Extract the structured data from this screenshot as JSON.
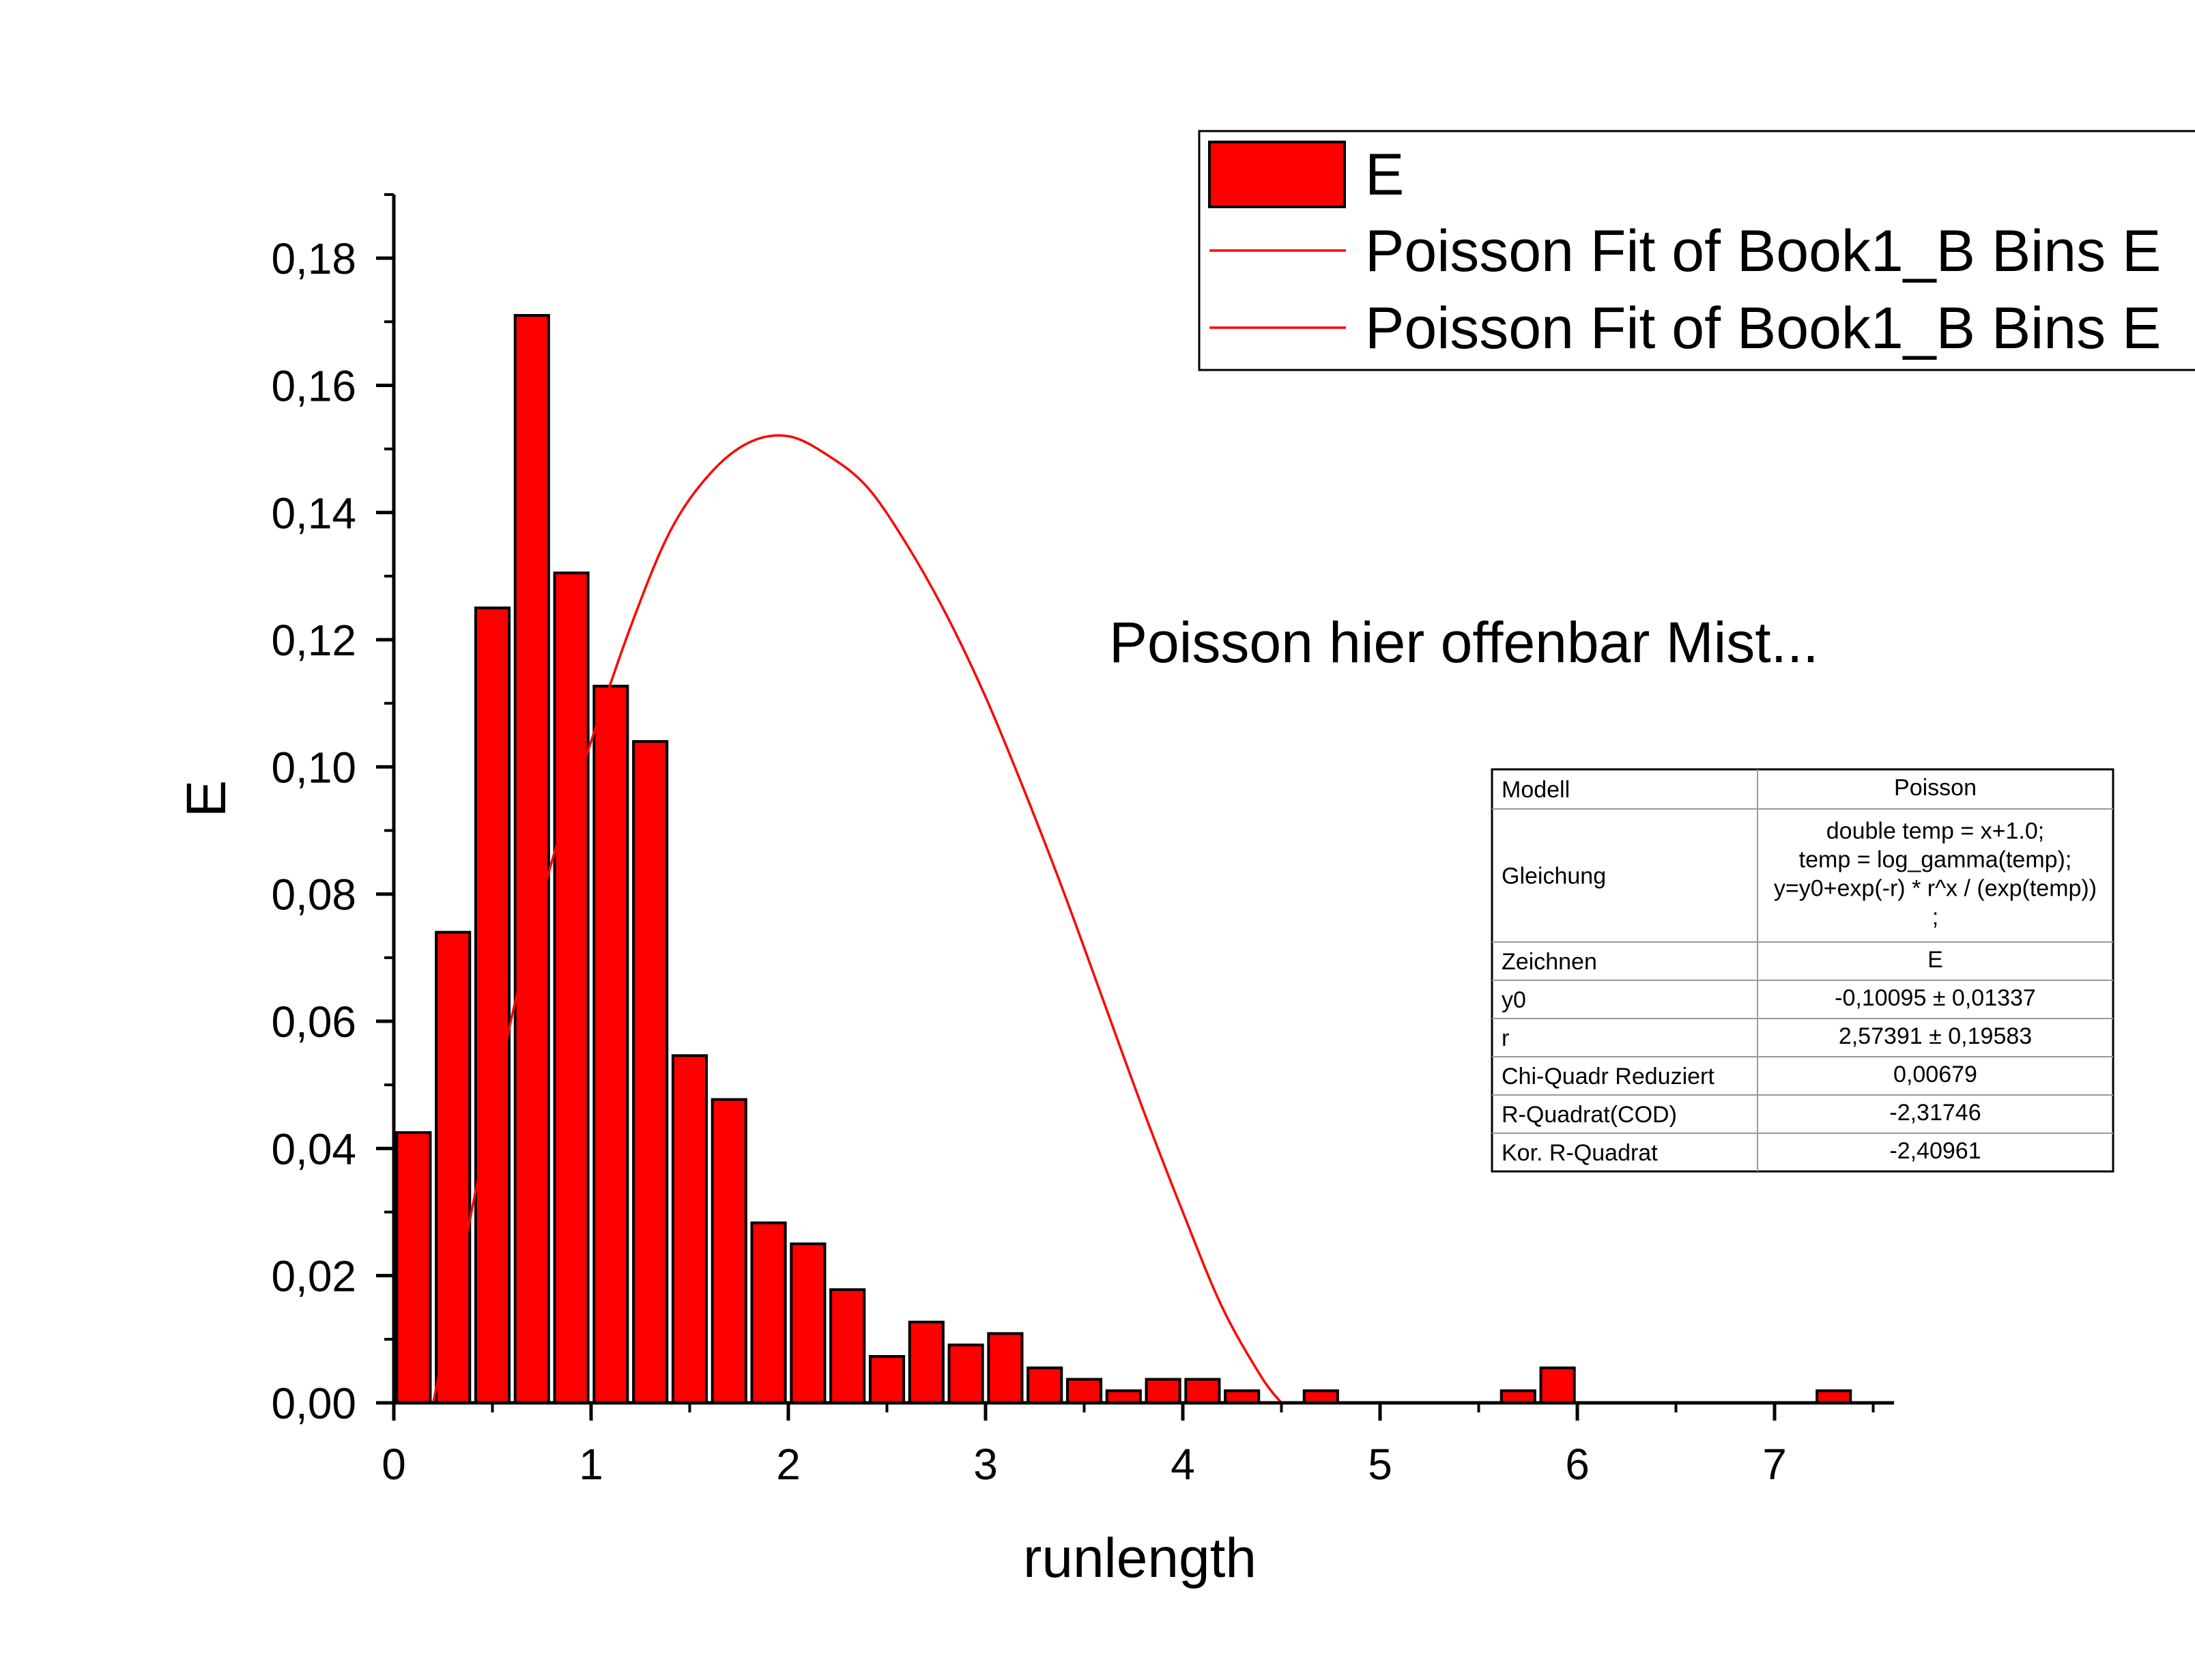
{
  "chart_data": {
    "type": "bar",
    "xlabel": "runlength",
    "ylabel": "E",
    "xlim": [
      0,
      7.6
    ],
    "ylim": [
      0,
      0.19
    ],
    "x_ticks": [
      "0",
      "1",
      "2",
      "3",
      "4",
      "5",
      "6",
      "7"
    ],
    "y_ticks": [
      "0,00",
      "0,02",
      "0,04",
      "0,06",
      "0,08",
      "0,10",
      "0,12",
      "0,14",
      "0,16",
      "0,18"
    ],
    "bar_width": 0.17,
    "bars": {
      "name": "E",
      "color": "#ff0000",
      "x": [
        0.1,
        0.3,
        0.5,
        0.7,
        0.9,
        1.1,
        1.3,
        1.5,
        1.7,
        1.9,
        2.1,
        2.3,
        2.5,
        2.7,
        2.9,
        3.1,
        3.3,
        3.5,
        3.7,
        3.9,
        4.1,
        4.3,
        4.7,
        5.7,
        5.9,
        7.3
      ],
      "values": [
        0.0425,
        0.074,
        0.125,
        0.171,
        0.1305,
        0.1127,
        0.104,
        0.0546,
        0.0477,
        0.0283,
        0.025,
        0.0178,
        0.0073,
        0.0127,
        0.0091,
        0.0109,
        0.0055,
        0.0037,
        0.0019,
        0.0037,
        0.0037,
        0.0019,
        0.0019,
        0.0019,
        0.0055,
        0.0019
      ]
    },
    "fit_curve": {
      "name": "Poisson Fit of Book1_B Bins E",
      "color": "#ff0000",
      "x": [
        0.2,
        0.4,
        0.6,
        0.8,
        1.0,
        1.2,
        1.4,
        1.6,
        1.8,
        2.0,
        2.2,
        2.4,
        2.6,
        2.8,
        3.0,
        3.2,
        3.4,
        3.6,
        3.8,
        4.0,
        4.2,
        4.4,
        4.5
      ],
      "y": [
        0.0,
        0.031,
        0.061,
        0.085,
        0.104,
        0.122,
        0.137,
        0.146,
        0.151,
        0.152,
        0.149,
        0.144,
        0.135,
        0.124,
        0.111,
        0.096,
        0.08,
        0.063,
        0.046,
        0.03,
        0.015,
        0.004,
        0.0
      ]
    },
    "legend": {
      "position": "top-right",
      "entries": [
        {
          "label": "E",
          "kind": "bar"
        },
        {
          "label": "Poisson Fit of Book1_B Bins E",
          "kind": "line"
        },
        {
          "label": "Poisson Fit of Book1_B Bins E",
          "kind": "line"
        }
      ]
    },
    "annotation": "Poisson hier offenbar Mist...",
    "fit_table": {
      "rows": [
        {
          "label": "Modell",
          "value": [
            "Poisson"
          ]
        },
        {
          "label": "Gleichung",
          "value": [
            "double temp = x+1.0;",
            "temp = log_gamma(temp);",
            "y=y0+exp(-r) * r^x / (exp(temp))",
            ";"
          ]
        },
        {
          "label": "Zeichnen",
          "value": [
            "E"
          ]
        },
        {
          "label": "y0",
          "value": [
            "-0,10095 ± 0,01337"
          ]
        },
        {
          "label": "r",
          "value": [
            "2,57391 ± 0,19583"
          ]
        },
        {
          "label": "Chi-Quadr Reduziert",
          "value": [
            "0,00679"
          ]
        },
        {
          "label": "R-Quadrat(COD)",
          "value": [
            "-2,31746"
          ]
        },
        {
          "label": "Kor. R-Quadrat",
          "value": [
            "-2,40961"
          ]
        }
      ]
    }
  }
}
